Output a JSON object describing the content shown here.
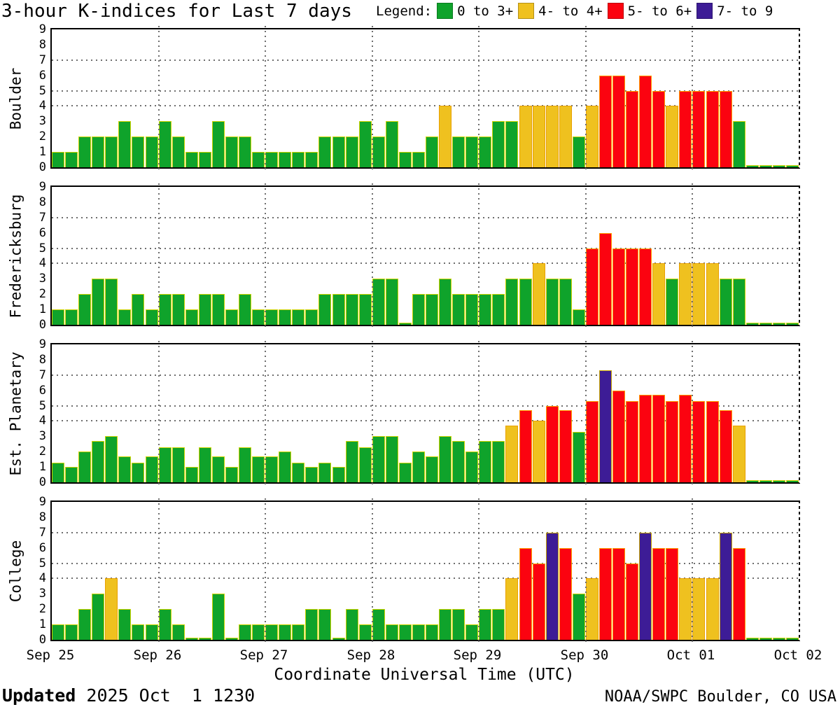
{
  "title": "3-hour K-indices for Last 7 days",
  "legend": {
    "label": "Legend:",
    "items": [
      {
        "label": "0 to 3+",
        "color": "#0FA32B"
      },
      {
        "label": "4- to 4+",
        "color": "#EFC11F"
      },
      {
        "label": "5- to 6+",
        "color": "#FB0310"
      },
      {
        "label": "7- to 9",
        "color": "#3D1C96"
      }
    ]
  },
  "footer": {
    "updated_label": "Updated",
    "updated_value": " 2025 Oct  1 1230",
    "credit": "NOAA/SWPC Boulder, CO USA"
  },
  "chart_data": {
    "type": "bar",
    "title": "3-hour K-indices for Last 7 days",
    "xlabel": "Coordinate Universal Time (UTC)",
    "x_tick_labels": [
      "Sep 25",
      "Sep 26",
      "Sep 27",
      "Sep 28",
      "Sep 29",
      "Sep 30",
      "Oct 01",
      "Oct 02"
    ],
    "bars_per_day": 8,
    "ylim": [
      0,
      9
    ],
    "y_ticks": [
      0,
      1,
      2,
      3,
      4,
      5,
      6,
      7,
      8,
      9
    ],
    "h_gridlines_at": [
      4,
      5,
      7
    ],
    "grid": true,
    "legend_position": "top",
    "colors": {
      "green": "#0FA32B",
      "yellow": "#EFC11F",
      "red": "#FB0310",
      "purple": "#3D1C96"
    },
    "color_rule": "green < 3.5 <= yellow < 4.5 <= red < 6.5 <= purple",
    "panels": [
      {
        "station": "Boulder",
        "k_values": [
          [
            1,
            1,
            2,
            2,
            2,
            3,
            2,
            2
          ],
          [
            3,
            2,
            1,
            1,
            3,
            2,
            2,
            1
          ],
          [
            1,
            1,
            1,
            1,
            2,
            2,
            2,
            3
          ],
          [
            2,
            3,
            1,
            1,
            2,
            4,
            2,
            2
          ],
          [
            2,
            3,
            3,
            4,
            4,
            4,
            4,
            2
          ],
          [
            4,
            6,
            6,
            5,
            6,
            5,
            4,
            5
          ],
          [
            5,
            5,
            5,
            3,
            0,
            0,
            0,
            0
          ]
        ]
      },
      {
        "station": "Fredericksburg",
        "k_values": [
          [
            1,
            1,
            2,
            3,
            3,
            1,
            2,
            1
          ],
          [
            2,
            2,
            1,
            2,
            2,
            1,
            2,
            1
          ],
          [
            1,
            1,
            1,
            1,
            2,
            2,
            2,
            2
          ],
          [
            3,
            3,
            0,
            2,
            2,
            3,
            2,
            2
          ],
          [
            2,
            2,
            3,
            3,
            4,
            3,
            3,
            1
          ],
          [
            5,
            6,
            5,
            5,
            5,
            4,
            3,
            4
          ],
          [
            4,
            4,
            3,
            3,
            0,
            0,
            0,
            0
          ]
        ]
      },
      {
        "station": "Est. Planetary",
        "k_values": [
          [
            1.3,
            1.0,
            2.0,
            2.7,
            3.0,
            1.7,
            1.3,
            1.7
          ],
          [
            2.3,
            2.3,
            1.0,
            2.3,
            1.7,
            1.0,
            2.3,
            1.7
          ],
          [
            1.7,
            2.0,
            1.3,
            1.0,
            1.3,
            1.0,
            2.7,
            2.3
          ],
          [
            3.0,
            3.0,
            1.3,
            2.0,
            1.7,
            3.0,
            2.7,
            2.0
          ],
          [
            2.7,
            2.7,
            3.7,
            4.7,
            4.0,
            5.0,
            4.7,
            3.3
          ],
          [
            5.3,
            7.3,
            6.0,
            5.3,
            5.7,
            5.7,
            5.3,
            5.7
          ],
          [
            5.3,
            5.3,
            4.7,
            3.7,
            0,
            0,
            0,
            0
          ]
        ]
      },
      {
        "station": "College",
        "k_values": [
          [
            1,
            1,
            2,
            3,
            4,
            2,
            1,
            1
          ],
          [
            2,
            1,
            0,
            0,
            3,
            0,
            1,
            1
          ],
          [
            1,
            1,
            1,
            2,
            2,
            0,
            2,
            1
          ],
          [
            2,
            1,
            1,
            1,
            1,
            2,
            2,
            1
          ],
          [
            2,
            2,
            4,
            6,
            5,
            7,
            6,
            3
          ],
          [
            4,
            6,
            6,
            5,
            7,
            6,
            6,
            4
          ],
          [
            4,
            4,
            7,
            6,
            0,
            0,
            0,
            0
          ]
        ]
      }
    ]
  }
}
